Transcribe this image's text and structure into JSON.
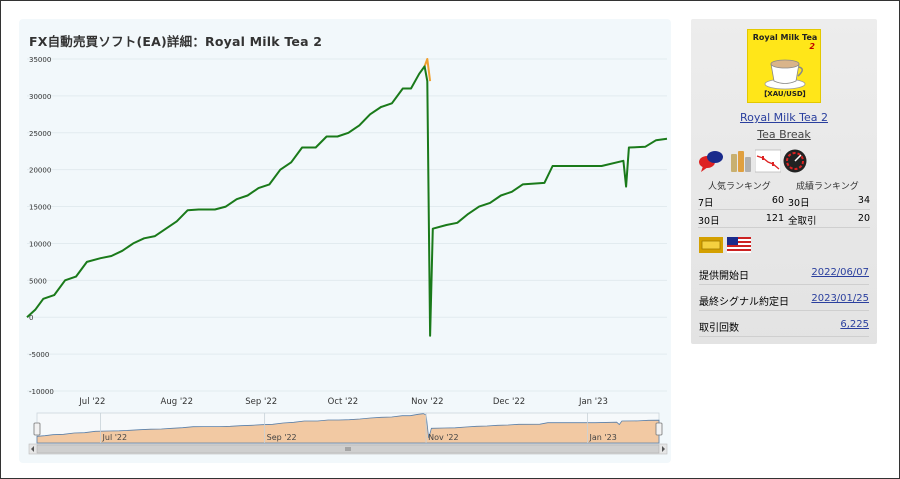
{
  "chart": {
    "title": "FX自動売買ソフト(EA)詳細：Royal Milk Tea 2"
  },
  "chart_data": {
    "type": "line",
    "title": "FX自動売買ソフト(EA)詳細：Royal Milk Tea 2",
    "xlabel": "",
    "ylabel": "",
    "ylim": [
      -10000,
      35000
    ],
    "y_ticks": [
      -10000,
      -5000,
      0,
      5000,
      10000,
      15000,
      20000,
      25000,
      30000,
      35000
    ],
    "y_tick_labels": [
      "-10000",
      "-5000",
      "0",
      "5000",
      "10000",
      "15000",
      "20000",
      "25000",
      "30000",
      "35000"
    ],
    "xlim": [
      "2022-06-07",
      "2023-01-28"
    ],
    "x_ticks": [
      {
        "label": "Jul '22",
        "date": "2022-07-01"
      },
      {
        "label": "Aug '22",
        "date": "2022-08-01"
      },
      {
        "label": "Sep '22",
        "date": "2022-09-01"
      },
      {
        "label": "Oct '22",
        "date": "2022-10-01"
      },
      {
        "label": "Nov '22",
        "date": "2022-11-01"
      },
      {
        "label": "Dec '22",
        "date": "2022-12-01"
      },
      {
        "label": "Jan '23",
        "date": "2023-01-01"
      }
    ],
    "navigator_ticks": [
      "Jul '22",
      "Sep '22",
      "Nov '22",
      "Jan '23"
    ],
    "grid": true,
    "legend": "none",
    "series": [
      {
        "color": "#1a7a1a",
        "points": [
          [
            "2022-06-07",
            0
          ],
          [
            "2022-06-10",
            1000
          ],
          [
            "2022-06-13",
            2500
          ],
          [
            "2022-06-17",
            3000
          ],
          [
            "2022-06-21",
            5000
          ],
          [
            "2022-06-25",
            5500
          ],
          [
            "2022-06-29",
            7500
          ],
          [
            "2022-07-04",
            8000
          ],
          [
            "2022-07-08",
            8300
          ],
          [
            "2022-07-12",
            9000
          ],
          [
            "2022-07-16",
            10000
          ],
          [
            "2022-07-20",
            10700
          ],
          [
            "2022-07-24",
            11000
          ],
          [
            "2022-07-28",
            12000
          ],
          [
            "2022-08-01",
            13000
          ],
          [
            "2022-08-05",
            14500
          ],
          [
            "2022-08-09",
            14600
          ],
          [
            "2022-08-15",
            14600
          ],
          [
            "2022-08-19",
            15000
          ],
          [
            "2022-08-23",
            16000
          ],
          [
            "2022-08-27",
            16500
          ],
          [
            "2022-08-31",
            17500
          ],
          [
            "2022-09-04",
            18000
          ],
          [
            "2022-09-08",
            20000
          ],
          [
            "2022-09-12",
            21000
          ],
          [
            "2022-09-16",
            23000
          ],
          [
            "2022-09-21",
            23000
          ],
          [
            "2022-09-25",
            24500
          ],
          [
            "2022-09-29",
            24500
          ],
          [
            "2022-10-03",
            25000
          ],
          [
            "2022-10-07",
            26000
          ],
          [
            "2022-10-11",
            27500
          ],
          [
            "2022-10-15",
            28500
          ],
          [
            "2022-10-19",
            29000
          ],
          [
            "2022-10-23",
            31000
          ],
          [
            "2022-10-26",
            31000
          ],
          [
            "2022-10-29",
            33000
          ],
          [
            "2022-10-31",
            34000
          ],
          [
            "2022-11-01",
            32000
          ],
          [
            "2022-11-02",
            -2500
          ],
          [
            "2022-11-03",
            12000
          ],
          [
            "2022-11-08",
            12500
          ],
          [
            "2022-11-12",
            12800
          ],
          [
            "2022-11-16",
            14000
          ],
          [
            "2022-11-20",
            15000
          ],
          [
            "2022-11-24",
            15500
          ],
          [
            "2022-11-28",
            16500
          ],
          [
            "2022-12-02",
            17000
          ],
          [
            "2022-12-06",
            18000
          ],
          [
            "2022-12-14",
            18200
          ],
          [
            "2022-12-17",
            20500
          ],
          [
            "2022-12-25",
            20500
          ],
          [
            "2023-01-04",
            20500
          ],
          [
            "2023-01-12",
            21200
          ],
          [
            "2023-01-13",
            17700
          ],
          [
            "2023-01-14",
            23000
          ],
          [
            "2023-01-20",
            23100
          ],
          [
            "2023-01-24",
            24000
          ],
          [
            "2023-01-28",
            24200
          ]
        ]
      },
      {
        "color": "#f0a030",
        "points": [
          [
            "2022-10-31",
            34000
          ],
          [
            "2022-11-01",
            35000
          ],
          [
            "2022-11-02",
            32000
          ]
        ]
      }
    ]
  },
  "sidebar": {
    "thumb_title": "Royal Milk Tea",
    "thumb_num": "2",
    "thumb_pair": "【XAU/USD】",
    "ea_name": "Royal Milk Tea 2",
    "developer": "Tea Break",
    "badges": [
      "chat-bubbles-icon",
      "bottle-icon",
      "candlestick-chart-icon",
      "speedometer-icon"
    ],
    "popular_rank_label": "人気ランキング",
    "performance_rank_label": "成績ランキング",
    "ranks": [
      {
        "p_label": "7日",
        "p_value": "60",
        "s_label": "30日",
        "s_value": "34"
      },
      {
        "p_label": "30日",
        "p_value": "121",
        "s_label": "全取引",
        "s_value": "20"
      }
    ],
    "flags": [
      "gold-icon",
      "us-flag-icon"
    ],
    "info": [
      {
        "label": "提供開始日",
        "value": "2022/06/07"
      },
      {
        "label": "最終シグナル約定日",
        "value": "2023/01/25"
      },
      {
        "label": "取引回数",
        "value": "6,225"
      }
    ]
  }
}
